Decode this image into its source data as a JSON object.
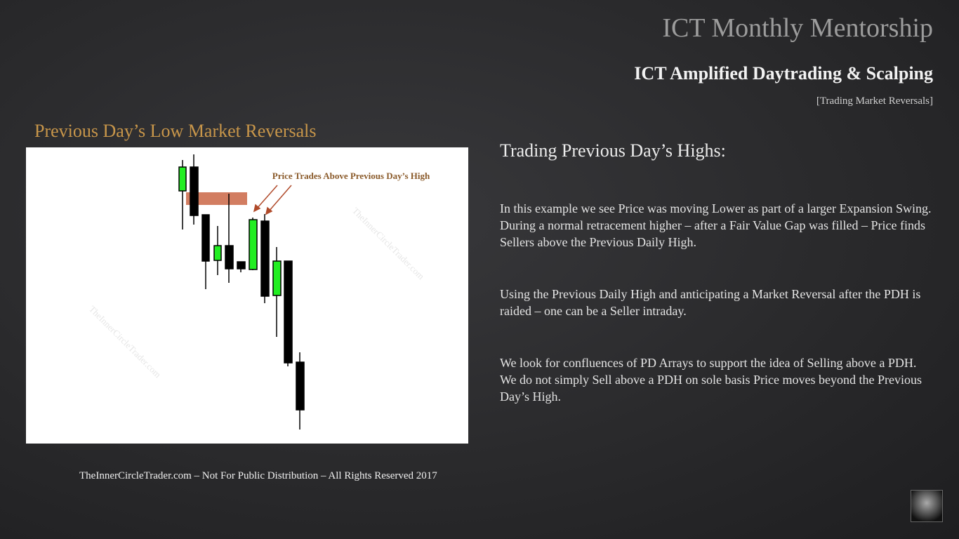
{
  "header": {
    "title": "ICT Monthly Mentorship",
    "subtitle": "ICT Amplified Daytrading & Scalping",
    "tag": "[Trading Market Reversals]"
  },
  "figure": {
    "title": "Previous Day’s Low Market Reversals",
    "annotation": "Price Trades Above Previous Day’s High",
    "watermark": "TheInnerCircleTrader.com"
  },
  "body": {
    "heading": "Trading Previous Day’s Highs:",
    "paragraphs": [
      "In this example we see Price was moving Lower as part of a larger Expansion Swing.  During a normal retracement higher – after a Fair Value Gap was filled – Price finds Sellers above the Previous Daily High.",
      "Using the Previous Daily High and anticipating a Market Reversal after the PDH is raided – one can be a Seller intraday.",
      "We look for confluences of PD Arrays to support the idea of Selling above a PDH.  We do not simply Sell above a PDH on sole basis Price moves beyond the Previous Day’s High."
    ]
  },
  "footer": "TheInnerCircleTrader.com – Not For Public Distribution – All Rights Reserved 2017"
}
